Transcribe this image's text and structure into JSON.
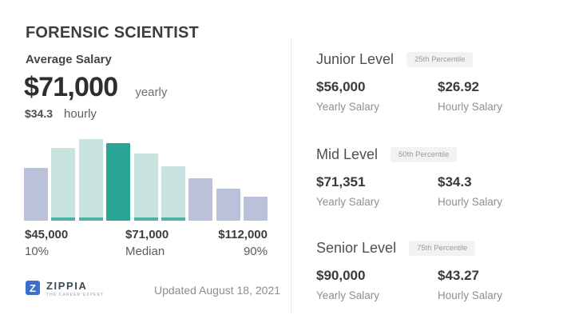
{
  "page": {
    "title": "FORENSIC SCIENTIST",
    "average_salary_label": "Average Salary",
    "yearly_value": "$71,000",
    "yearly_unit": "yearly",
    "hourly_value": "$34.3",
    "hourly_unit": "hourly",
    "updated": "Updated August 18, 2021"
  },
  "brand": {
    "name": "ZIPPIA",
    "tagline": "THE CAREER EXPERT",
    "logo_letter": "Z",
    "logo_color": "#3a6fd0"
  },
  "colors": {
    "accent_teal": "#29a495",
    "mint": "#c9e4e0",
    "lavender": "#bcc1da",
    "strip_teal": "#4fb3a4",
    "badge_bg": "#f2f2f2",
    "divider": "#eaeaea"
  },
  "chart_data": {
    "type": "bar",
    "title": "Forensic Scientist salary distribution",
    "values": [
      66,
      91,
      102,
      97,
      84,
      68,
      53,
      40,
      30
    ],
    "bar_colors": [
      "#bcc1da",
      "#c9e4e0",
      "#c9e4e0",
      "#29a495",
      "#c9e4e0",
      "#c9e4e0",
      "#bcc1da",
      "#bcc1da",
      "#bcc1da"
    ],
    "accent_strip_bars": [
      1,
      2,
      4,
      5
    ],
    "accent_strip_color": "#4fb3a4",
    "ylim": [
      0,
      102
    ],
    "grid": false,
    "legend": false,
    "x_markers": [
      {
        "value": "$45,000",
        "label": "10%",
        "position": "left"
      },
      {
        "value": "$71,000",
        "label": "Median",
        "position": "center"
      },
      {
        "value": "$112,000",
        "label": "90%",
        "position": "right"
      }
    ]
  },
  "levels": [
    {
      "name": "Junior Level",
      "percentile": "25th Percentile",
      "yearly_value": "$56,000",
      "yearly_label": "Yearly Salary",
      "hourly_value": "$26.92",
      "hourly_label": "Hourly Salary"
    },
    {
      "name": "Mid Level",
      "percentile": "50th Percentile",
      "yearly_value": "$71,351",
      "yearly_label": "Yearly Salary",
      "hourly_value": "$34.3",
      "hourly_label": "Hourly Salary"
    },
    {
      "name": "Senior Level",
      "percentile": "75th Percentile",
      "yearly_value": "$90,000",
      "yearly_label": "Yearly Salary",
      "hourly_value": "$43.27",
      "hourly_label": "Hourly Salary"
    }
  ]
}
